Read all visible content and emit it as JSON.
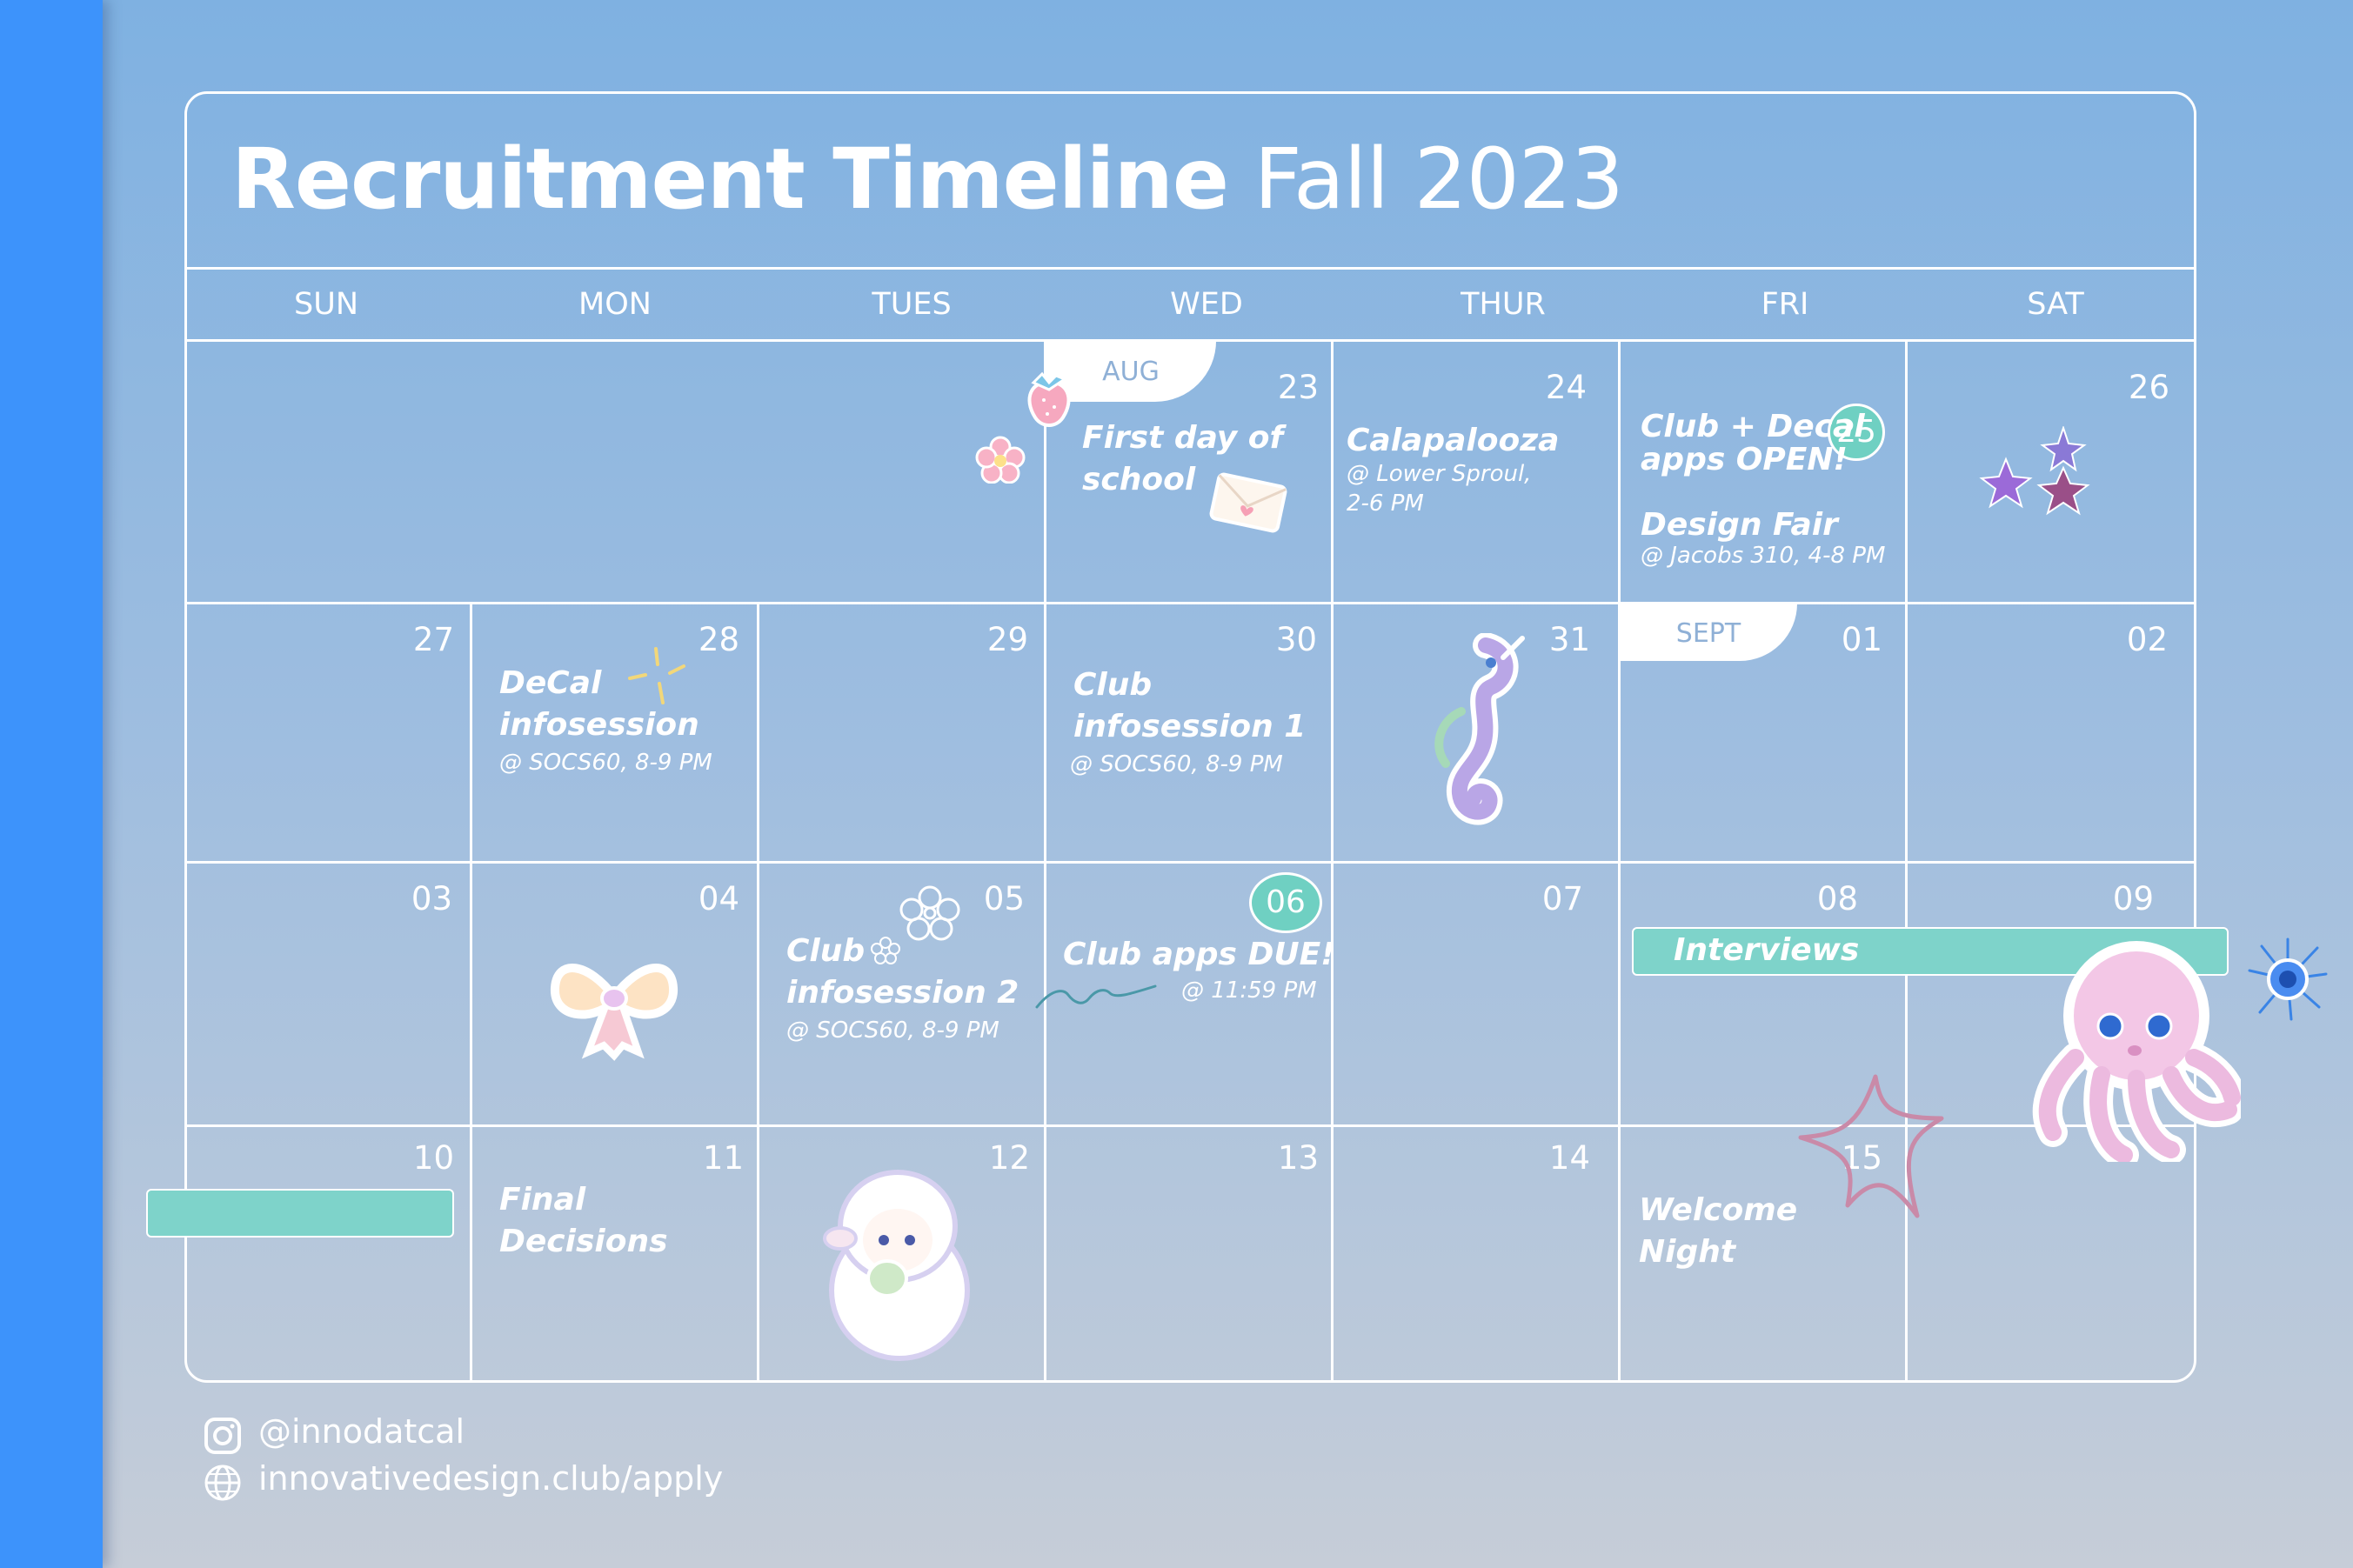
{
  "title": {
    "bold": "Recruitment Timeline",
    "light": "Fall 2023"
  },
  "days_of_week": [
    "SUN",
    "MON",
    "TUES",
    "WED",
    "THUR",
    "FRI",
    "SAT"
  ],
  "month_tabs": {
    "aug": "AUG",
    "sept": "SEPT"
  },
  "dates": {
    "d23": "23",
    "d24": "24",
    "d25": "25",
    "d26": "26",
    "d27": "27",
    "d28": "28",
    "d29": "29",
    "d30": "30",
    "d31": "31",
    "d01": "01",
    "d02": "02",
    "d03": "03",
    "d04": "04",
    "d05": "05",
    "d06": "06",
    "d07": "07",
    "d08": "08",
    "d09": "09",
    "d10": "10",
    "d11": "11",
    "d12": "12",
    "d13": "13",
    "d14": "14",
    "d15": "15"
  },
  "events": {
    "first_day": "First day of\nschool",
    "calapalooza": "Calapalooza",
    "calapalooza_detail": "@ Lower Sproul,\n2-6 PM",
    "apps_open": "Club + Decal\napps OPEN!",
    "design_fair": "Design Fair",
    "design_fair_detail": "@ Jacobs 310, 4-8 PM",
    "decal_info": "DeCal\ninfosession",
    "decal_info_detail": "@ SOCS60, 8-9 PM",
    "club_info_1": "Club\ninfosession 1",
    "club_info_1_detail": "@ SOCS60, 8-9 PM",
    "club_info_2": "Club\ninfosession 2",
    "club_info_2_detail": "@ SOCS60, 8-9 PM",
    "apps_due": "Club apps DUE!",
    "apps_due_detail": "@ 11:59 PM",
    "interviews": "Interviews",
    "final_decisions": "Final\nDecisions",
    "welcome_night": "Welcome\nNight"
  },
  "footer": {
    "instagram": "@innodatcal",
    "website": "innovativedesign.club/apply"
  },
  "colors": {
    "accent_teal": "#7ed3ca",
    "left_bar": "#3d93fb",
    "text": "#ffffff"
  }
}
